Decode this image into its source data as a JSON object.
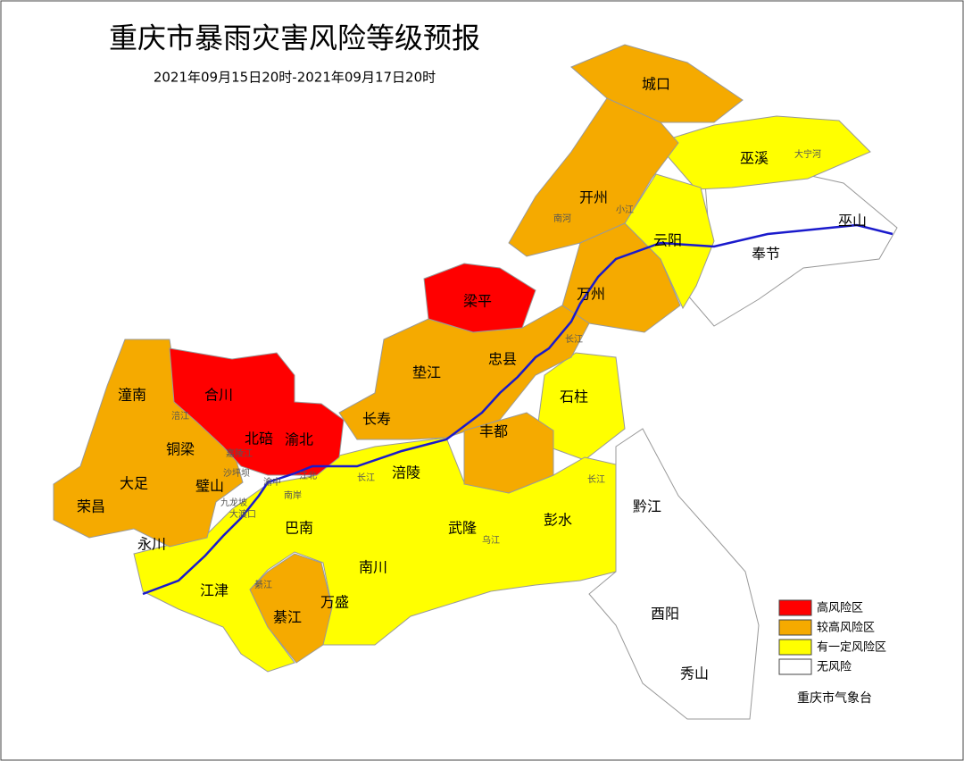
{
  "header": {
    "title": "重庆市暴雨灾害风险等级预报",
    "subtitle": "2021年09月15日20时-2021年09月17日20时"
  },
  "districts": [
    "城口",
    "巫溪",
    "开州",
    "巫山",
    "云阳",
    "奉节",
    "梁平",
    "万州",
    "垫江",
    "忠县",
    "潼南",
    "合川",
    "石柱",
    "长寿",
    "铜梁",
    "北碚",
    "渝北",
    "丰都",
    "大足",
    "璧山",
    "涪陵",
    "荣昌",
    "永川",
    "巴南",
    "武隆",
    "彭水",
    "黔江",
    "江津",
    "南川",
    "万盛",
    "綦江",
    "酉阳",
    "秀山"
  ],
  "places": [
    "大宁河",
    "南河",
    "小江",
    "长江",
    "长江",
    "长江",
    "涪江",
    "嘉陵江",
    "沙坪坝",
    "九龙坡",
    "大渡口",
    "南岸",
    "江北",
    "乌江",
    "綦江",
    "渝中"
  ],
  "legend": [
    {
      "label": "高风险区",
      "color": "#ff0000"
    },
    {
      "label": "较高风险区",
      "color": "#f5aa00"
    },
    {
      "label": "有一定风险区",
      "color": "#ffff00"
    },
    {
      "label": "无风险",
      "color": "#ffffff"
    }
  ],
  "footer": "重庆市气象台"
}
